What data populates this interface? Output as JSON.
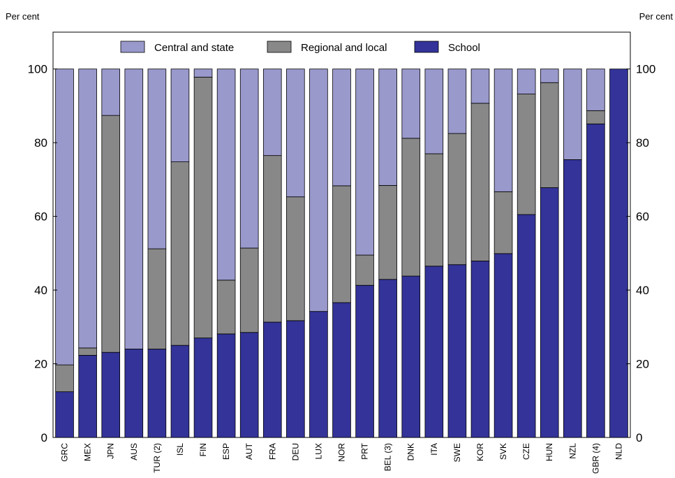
{
  "chart_data": {
    "type": "bar",
    "stacked": true,
    "ylabel_left": "Per cent",
    "ylabel_right": "Per cent",
    "ylim": [
      0,
      110
    ],
    "yticks": [
      0,
      20,
      40,
      60,
      80,
      100
    ],
    "grid": false,
    "legend_position": "top",
    "categories": [
      "GRC",
      "MEX",
      "JPN",
      "AUS",
      "TUR (2)",
      "ISL",
      "FIN",
      "ESP",
      "AUT",
      "FRA",
      "DEU",
      "LUX",
      "NOR",
      "PRT",
      "BEL (3)",
      "DNK",
      "ITA",
      "SWE",
      "KOR",
      "SVK",
      "CZE",
      "HUN",
      "NZL",
      "GBR (4)",
      "NLD"
    ],
    "series": [
      {
        "name": "School",
        "color": "#333399",
        "values": [
          12.4,
          22.3,
          23.1,
          24.0,
          24.0,
          25.0,
          27.0,
          28.1,
          28.5,
          31.3,
          31.7,
          34.2,
          36.6,
          41.3,
          42.9,
          43.8,
          46.5,
          46.9,
          47.9,
          49.9,
          60.5,
          67.8,
          75.4,
          85.1,
          100.0
        ]
      },
      {
        "name": "Regional and local",
        "color": "#888888",
        "values": [
          7.3,
          2.0,
          64.3,
          0.0,
          27.2,
          49.8,
          70.8,
          14.6,
          22.9,
          45.2,
          33.6,
          0.0,
          31.7,
          8.2,
          25.5,
          37.4,
          30.5,
          35.6,
          42.8,
          16.8,
          32.7,
          28.5,
          0.0,
          3.6,
          0.0
        ]
      },
      {
        "name": "Central and state",
        "color": "#9999cc",
        "values": [
          80.3,
          75.7,
          12.6,
          76.0,
          48.8,
          25.2,
          2.2,
          57.3,
          48.6,
          23.5,
          34.7,
          65.8,
          31.7,
          50.5,
          31.6,
          18.8,
          23.0,
          17.5,
          9.3,
          33.3,
          6.8,
          3.7,
          24.6,
          11.3,
          0.0
        ]
      }
    ],
    "legend_order": [
      "Central and state",
      "Regional and local",
      "School"
    ]
  }
}
